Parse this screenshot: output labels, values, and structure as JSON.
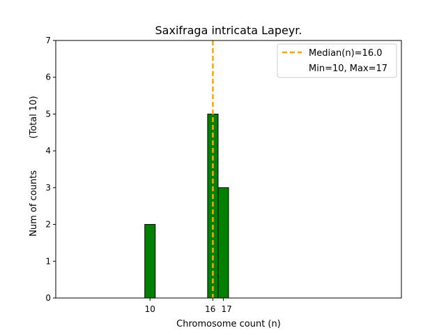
{
  "chart_data": {
    "type": "bar",
    "title": "Saxifraga intricata Lapeyr.",
    "xlabel": "Chromosome count (n)",
    "ylabel": "Num of counts",
    "ylabel_total": "(Total 10)",
    "xlim": [
      1,
      34
    ],
    "ylim": [
      0,
      7
    ],
    "x_ticks": [
      10,
      16,
      17
    ],
    "y_ticks": [
      0,
      1,
      2,
      3,
      4,
      5,
      6,
      7
    ],
    "bar_width": 1,
    "bars": [
      {
        "x": 10,
        "value": 2
      },
      {
        "x": 16,
        "value": 5
      },
      {
        "x": 17,
        "value": 3
      }
    ],
    "zero_bins": [
      1,
      19
    ],
    "median": 16.0,
    "legend": {
      "placement": "top-right",
      "entries": [
        "Median(n)=16.0",
        "Min=10, Max=17"
      ]
    },
    "colors": {
      "bar_fill": "#008000",
      "bar_edge": "#000000",
      "median_line": "#FFA500"
    },
    "grid": false
  }
}
